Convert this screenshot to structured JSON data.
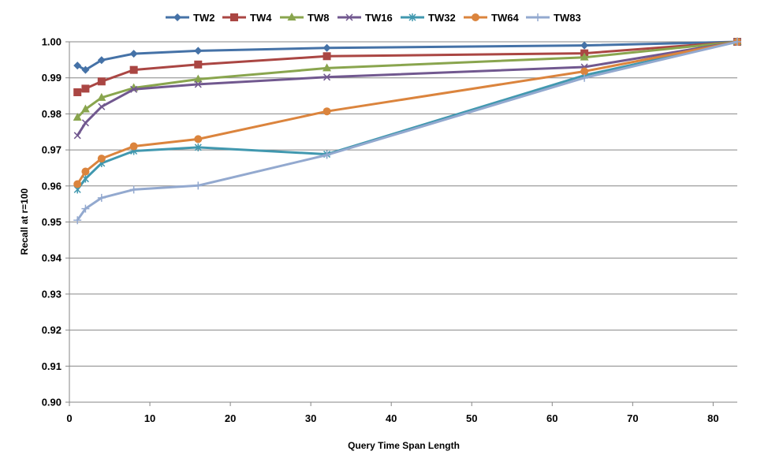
{
  "chart_data": {
    "type": "line",
    "title": "",
    "xlabel": "Query Time Span Length",
    "ylabel": "Recall at r=100",
    "xlim": [
      0,
      83
    ],
    "ylim": [
      0.9,
      1.0
    ],
    "x_ticks": [
      0,
      10,
      20,
      30,
      40,
      50,
      60,
      70,
      80
    ],
    "y_ticks": [
      0.9,
      0.91,
      0.92,
      0.93,
      0.94,
      0.95,
      0.96,
      0.97,
      0.98,
      0.99,
      1.0
    ],
    "x_tick_labels": [
      "0",
      "10",
      "20",
      "30",
      "40",
      "50",
      "60",
      "70",
      "80"
    ],
    "y_tick_labels": [
      "0.90",
      "0.91",
      "0.92",
      "0.93",
      "0.94",
      "0.95",
      "0.96",
      "0.97",
      "0.98",
      "0.99",
      "1.00"
    ],
    "grid": "horizontal",
    "legend_position": "top",
    "series": [
      {
        "name": "TW2",
        "color": "#4572A7",
        "marker": "diamond",
        "x": [
          1,
          2,
          4,
          8,
          16,
          32,
          64,
          83
        ],
        "values": [
          0.9934,
          0.9922,
          0.9949,
          0.9967,
          0.9975,
          0.9983,
          0.999,
          1.0
        ]
      },
      {
        "name": "TW4",
        "color": "#AA4643",
        "marker": "square",
        "x": [
          1,
          2,
          4,
          8,
          16,
          32,
          64,
          83
        ],
        "values": [
          0.986,
          0.987,
          0.989,
          0.9922,
          0.9937,
          0.996,
          0.9968,
          1.0
        ]
      },
      {
        "name": "TW8",
        "color": "#89A54E",
        "marker": "triangle",
        "x": [
          1,
          2,
          4,
          8,
          16,
          32,
          64,
          83
        ],
        "values": [
          0.979,
          0.9813,
          0.9845,
          0.9872,
          0.9896,
          0.9927,
          0.9957,
          1.0
        ]
      },
      {
        "name": "TW16",
        "color": "#71588F",
        "marker": "x",
        "x": [
          1,
          2,
          4,
          8,
          16,
          32,
          64,
          83
        ],
        "values": [
          0.974,
          0.9775,
          0.982,
          0.9868,
          0.9882,
          0.9902,
          0.993,
          1.0
        ]
      },
      {
        "name": "TW32",
        "color": "#4198AF",
        "marker": "star",
        "x": [
          1,
          2,
          4,
          8,
          16,
          32,
          64,
          83
        ],
        "values": [
          0.959,
          0.962,
          0.9663,
          0.9697,
          0.9707,
          0.9688,
          0.9907,
          1.0
        ]
      },
      {
        "name": "TW64",
        "color": "#DB843D",
        "marker": "circle",
        "x": [
          1,
          2,
          4,
          8,
          16,
          32,
          64,
          83
        ],
        "values": [
          0.9605,
          0.964,
          0.9676,
          0.971,
          0.973,
          0.9807,
          0.9918,
          1.0
        ]
      },
      {
        "name": "TW83",
        "color": "#93A9CF",
        "marker": "plus",
        "x": [
          1,
          2,
          4,
          8,
          16,
          32,
          64,
          83
        ],
        "values": [
          0.9505,
          0.9537,
          0.9567,
          0.959,
          0.9601,
          0.9686,
          0.99,
          1.0
        ]
      }
    ]
  }
}
